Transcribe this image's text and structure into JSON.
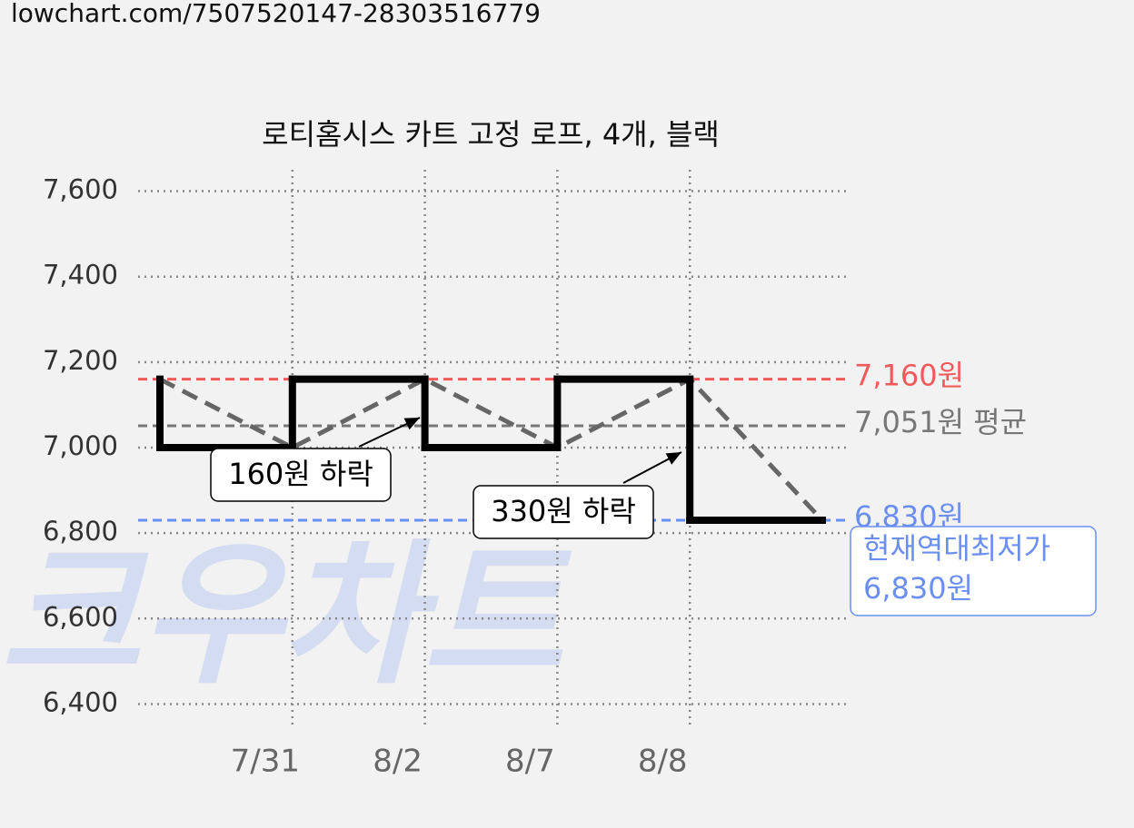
{
  "header": {
    "url": "lowchart.com/7507520147-28303516779"
  },
  "chart_data": {
    "type": "step",
    "title": "로티홈시스 카트 고정 로프, 4개, 블랙",
    "watermark": "크우차트",
    "categories": [
      null,
      "7/31",
      "8/2",
      "8/7",
      "8/8",
      null
    ],
    "series": [
      {
        "color": "#000000",
        "values": [
          7160,
          7000,
          7160,
          7000,
          7160,
          6830
        ]
      }
    ],
    "trend_color": "#666666",
    "ylim": [
      6350,
      7650
    ],
    "yticks": [
      {
        "value": 6400,
        "label": "6,400"
      },
      {
        "value": 6600,
        "label": "6,600"
      },
      {
        "value": 6800,
        "label": "6,800"
      },
      {
        "value": 7000,
        "label": "7,000"
      },
      {
        "value": 7200,
        "label": "7,200"
      },
      {
        "value": 7400,
        "label": "7,400"
      },
      {
        "value": 7600,
        "label": "7,600"
      }
    ],
    "grid": true,
    "reference_lines": [
      {
        "value": 7160,
        "label": "7,160원",
        "color": "#f05a5a"
      },
      {
        "value": 7051,
        "label": "7,051원 평균",
        "color": "#777777"
      },
      {
        "value": 6830,
        "label": "6,830원",
        "color": "#6b8ff0"
      }
    ],
    "annotations": [
      {
        "text": "160원 하락"
      },
      {
        "text": "330원 하락"
      },
      {
        "lines": [
          "현재역대최저가",
          "6,830원"
        ]
      }
    ]
  }
}
